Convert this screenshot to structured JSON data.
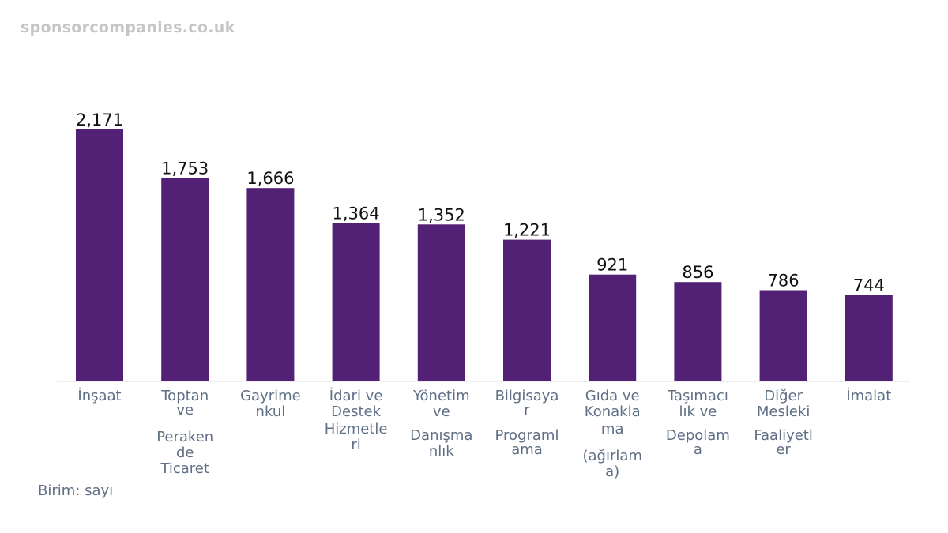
{
  "watermark": "sponsorcompanies.co.uk",
  "unit_note": "Birim: sayı",
  "colors": {
    "bar": "#522075",
    "value_label": "#111111",
    "category_label": "#5f6f86",
    "baseline": "#eeeeee"
  },
  "chart_data": {
    "type": "bar",
    "categories": [
      "İnşaat",
      "Toptan ve Perakende Ticaret",
      "Gayrimenkul",
      "İdari ve Destek Hizmetleri",
      "Yönetim ve Danışmanlık",
      "Bilgisayar Programlama",
      "Gıda ve Konaklama (ağırlama)",
      "Taşımacılık ve Depolama",
      "Diğer Mesleki Faaliyetler",
      "İmalat"
    ],
    "category_label_lines": [
      [
        "İnşaat"
      ],
      [
        "Toptan",
        "ve",
        "Peraken",
        "de",
        "Ticaret"
      ],
      [
        "Gayrime",
        "nkul"
      ],
      [
        "İdari ve",
        "Destek",
        "Hizmetle",
        "ri"
      ],
      [
        "Yönetim",
        "ve",
        "Danışma",
        "nlık"
      ],
      [
        "Bilgisaya",
        "r",
        "Programl",
        "ama"
      ],
      [
        "Gıda ve",
        "Konakla",
        "ma",
        "(ağırlam",
        "a)"
      ],
      [
        "Taşımacı",
        "lık ve",
        "Depolam",
        "a"
      ],
      [
        "Diğer",
        "Mesleki",
        "Faaliyetl",
        "er"
      ],
      [
        "İmalat"
      ]
    ],
    "values": [
      2171,
      1753,
      1666,
      1364,
      1352,
      1221,
      921,
      856,
      786,
      744
    ],
    "value_labels": [
      "2,171",
      "1,753",
      "1,666",
      "1,364",
      "1,352",
      "1,221",
      "921",
      "856",
      "786",
      "744"
    ],
    "title": "",
    "xlabel": "",
    "ylabel": "",
    "ylim": [
      0,
      2171
    ],
    "grid": false,
    "legend": "none"
  }
}
